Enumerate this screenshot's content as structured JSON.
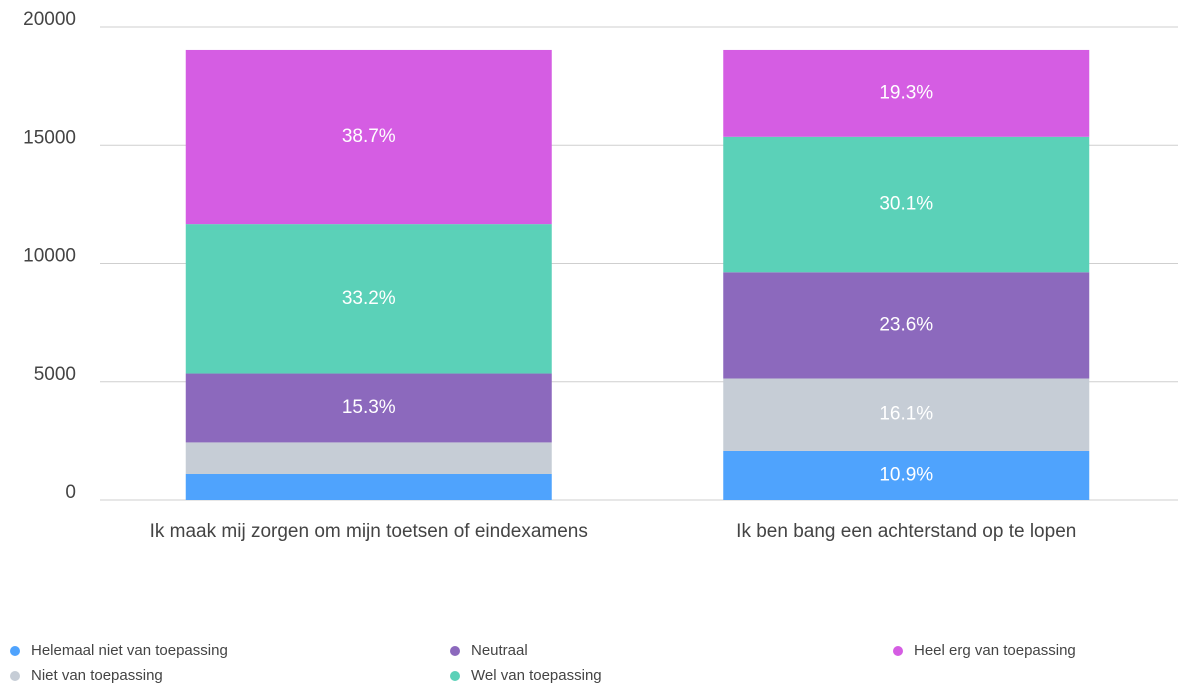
{
  "chart_data": {
    "type": "stacked_bar",
    "categories": [
      "Ik maak mij zorgen om mijn toetsen of eindexamens",
      "Ik ben bang een achterstand op te lopen"
    ],
    "series": [
      {
        "name": "Helemaal niet van toepassing",
        "color": "#4fa3fd",
        "values": [
          1100,
          2074
        ],
        "labels": [
          null,
          "10.9%"
        ]
      },
      {
        "name": "Niet van toepassing",
        "color": "#c6cdd6",
        "values": [
          1335,
          3064
        ],
        "labels": [
          null,
          "16.1%"
        ]
      },
      {
        "name": "Neutraal",
        "color": "#8c69bd",
        "values": [
          2912,
          4491
        ],
        "labels": [
          "15.3%",
          "23.6%"
        ]
      },
      {
        "name": "Wel van toepassing",
        "color": "#5bd1b8",
        "values": [
          6318,
          5728
        ],
        "labels": [
          "33.2%",
          "30.1%"
        ]
      },
      {
        "name": "Heel erg van toepassing",
        "color": "#d55de3",
        "values": [
          7365,
          3673
        ],
        "labels": [
          "38.7%",
          "19.3%"
        ]
      }
    ],
    "ylim": [
      0,
      20000
    ],
    "yticks": [
      0,
      5000,
      10000,
      15000,
      20000
    ],
    "grid": true
  }
}
